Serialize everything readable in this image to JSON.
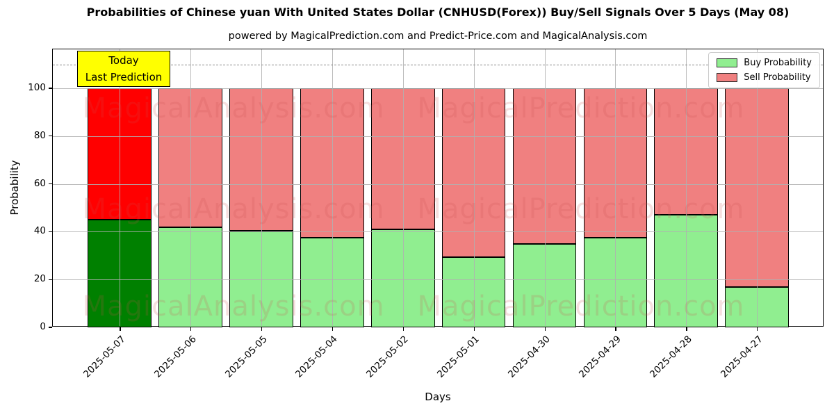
{
  "header": {
    "title": "Probabilities of Chinese yuan With United States Dollar (CNHUSD(Forex)) Buy/Sell Signals Over 5 Days (May 08)",
    "subtitle": "powered by MagicalPrediction.com and Predict-Price.com and MagicalAnalysis.com"
  },
  "watermarks": {
    "left": "MagicalAnalysis.com",
    "right": "MagicalPrediction.com"
  },
  "annotation": {
    "line1": "Today",
    "line2": "Last Prediction",
    "bg_color": "#ffff00"
  },
  "chart_data": {
    "type": "bar",
    "stacked": true,
    "title": "Probabilities of Chinese yuan With United States Dollar (CNHUSD(Forex)) Buy/Sell Signals Over 5 Days (May 08)",
    "xlabel": "Days",
    "ylabel": "Probability",
    "categories": [
      "2025-05-07",
      "2025-05-06",
      "2025-05-05",
      "2025-05-04",
      "2025-05-02",
      "2025-05-01",
      "2025-04-30",
      "2025-04-29",
      "2025-04-28",
      "2025-04-27"
    ],
    "series": [
      {
        "name": "Buy Probability",
        "color": "#90ee90",
        "values": [
          45,
          42,
          40.5,
          37.5,
          41,
          29.5,
          35,
          37.5,
          47,
          17
        ]
      },
      {
        "name": "Sell Probability",
        "color": "#f08080",
        "values": [
          55,
          58,
          59.5,
          62.5,
          59,
          70.5,
          65,
          62.5,
          53,
          83
        ]
      }
    ],
    "highlight": {
      "index": 0,
      "buy_color": "#008000",
      "sell_color": "#ff0000",
      "note": "Today / Last Prediction"
    },
    "yticks": [
      0,
      20,
      40,
      60,
      80,
      100
    ],
    "ylim": [
      0,
      116.3
    ],
    "dashed_guide_y": 110,
    "grid": true,
    "bar_edge_color": "#000000",
    "legend_position": "upper right",
    "legend": [
      {
        "label": "Buy Probability",
        "color": "#90ee90"
      },
      {
        "label": "Sell Probability",
        "color": "#f08080"
      }
    ]
  }
}
